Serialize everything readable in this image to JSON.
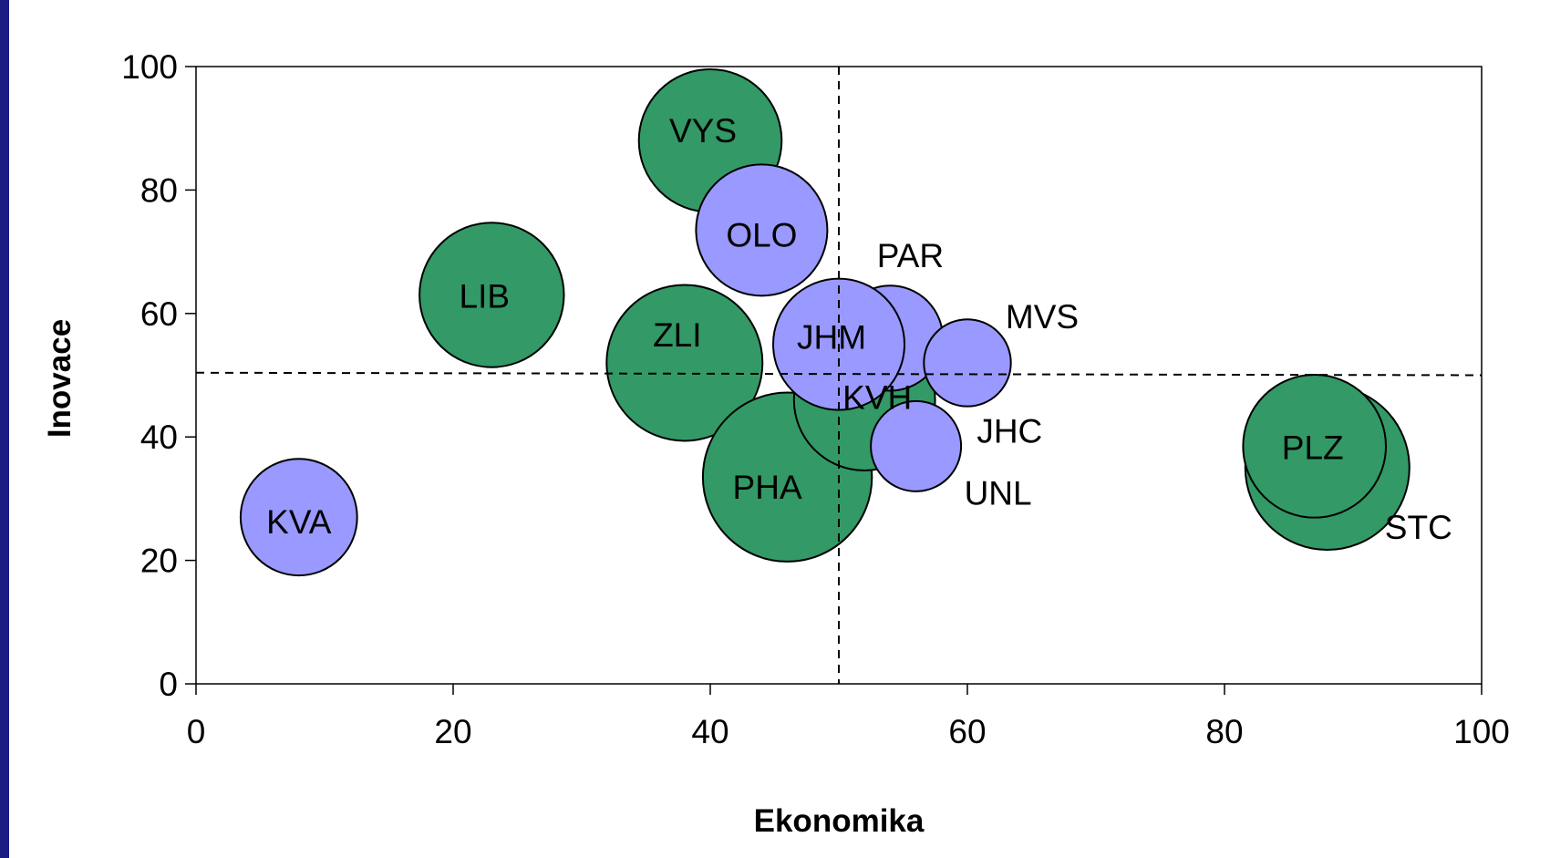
{
  "colors": {
    "border": "#1c1c84",
    "green": "#339966",
    "blue": "#9999ff",
    "line": "#000000"
  },
  "chart_data": {
    "type": "bubble",
    "title": "",
    "xlabel": "Ekonomika",
    "ylabel": "Inovace",
    "xlim": [
      0,
      100
    ],
    "ylim": [
      0,
      100
    ],
    "xticks": [
      "0",
      "20",
      "40",
      "60",
      "80",
      "100"
    ],
    "yticks": [
      "0",
      "20",
      "40",
      "60",
      "80",
      "100"
    ],
    "grid": false,
    "legend": "none",
    "reference_lines": {
      "x": 50,
      "y": 50
    },
    "points": [
      {
        "label": "STC",
        "x": 88,
        "y": 35,
        "size": 1.0,
        "color": "green"
      },
      {
        "label": "PLZ",
        "x": 87,
        "y": 38.5,
        "size": 0.87,
        "color": "green"
      },
      {
        "label": "VYS",
        "x": 40,
        "y": 88,
        "size": 0.87,
        "color": "green"
      },
      {
        "label": "LIB",
        "x": 23,
        "y": 63,
        "size": 0.88,
        "color": "green"
      },
      {
        "label": "ZLI",
        "x": 38,
        "y": 52,
        "size": 0.95,
        "color": "green"
      },
      {
        "label": "PHA",
        "x": 46,
        "y": 33.5,
        "size": 1.03,
        "color": "green"
      },
      {
        "label": "KVH",
        "x": 52,
        "y": 46,
        "size": 0.86,
        "color": "green"
      },
      {
        "label": "UNL",
        "x": 56,
        "y": 38.5,
        "size": 0.55,
        "color": "blue"
      },
      {
        "label": "PAR",
        "x": 54,
        "y": 56,
        "size": 0.64,
        "color": "blue"
      },
      {
        "label": "MVS",
        "x": 60,
        "y": 52,
        "size": 0.53,
        "color": "blue"
      },
      {
        "label": "JHM",
        "x": 50,
        "y": 55,
        "size": 0.8,
        "color": "blue"
      },
      {
        "label": "OLO",
        "x": 44,
        "y": 73.5,
        "size": 0.8,
        "color": "blue"
      },
      {
        "label": "KVA",
        "x": 8,
        "y": 27,
        "size": 0.71,
        "color": "blue"
      }
    ],
    "extra_labels": [
      {
        "text": "JHC",
        "x": 63,
        "y": 41
      }
    ]
  }
}
